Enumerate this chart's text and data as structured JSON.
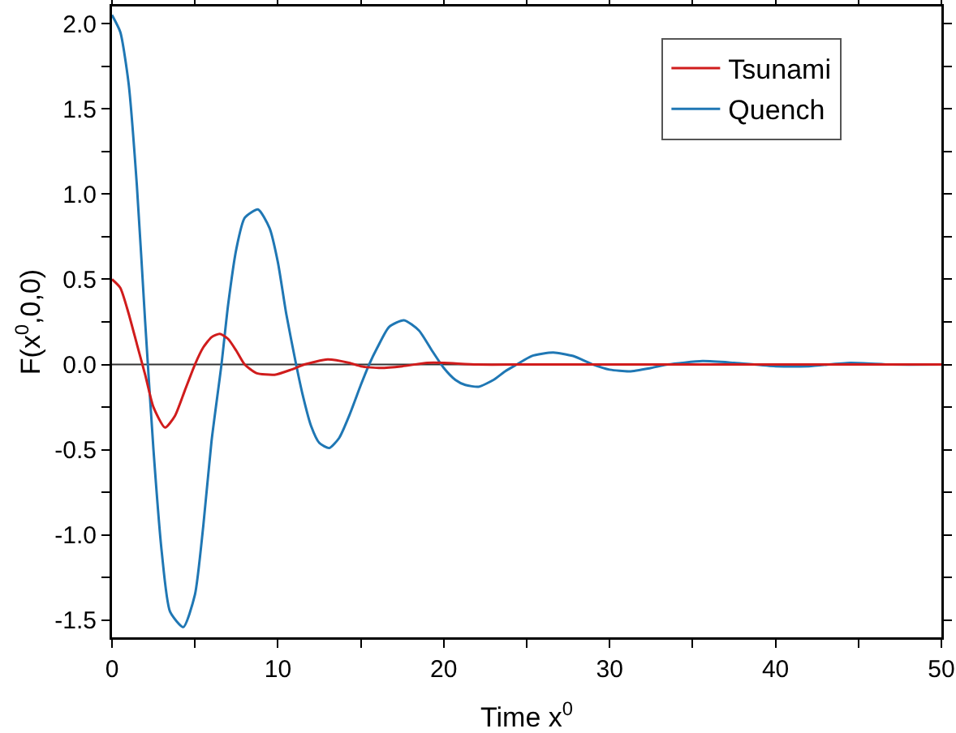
{
  "chart_data": {
    "type": "line",
    "xlabel": "Time x$^{0}$",
    "ylabel": "F(x$^{0}$,0,0)",
    "xlim": [
      0,
      50
    ],
    "xticks": [
      0,
      {
        "value": 5,
        "label": null
      },
      10,
      {
        "value": 15,
        "label": null
      },
      20,
      {
        "value": 25,
        "label": null
      },
      30,
      {
        "value": 35,
        "label": null
      },
      40,
      {
        "value": 45,
        "label": null
      },
      50
    ],
    "ylim": [
      -1.6,
      2.1
    ],
    "yticks": [
      {
        "value": -1.5,
        "label": "-1.5"
      },
      {
        "value": -1.25,
        "label": null
      },
      {
        "value": -1,
        "label": "-1.0"
      },
      {
        "value": -0.75,
        "label": null
      },
      {
        "value": -0.5,
        "label": "-0.5"
      },
      {
        "value": -0.25,
        "label": null
      },
      {
        "value": 0,
        "label": "0.0"
      },
      {
        "value": 0.25,
        "label": null
      },
      {
        "value": 0.5,
        "label": "0.5"
      },
      {
        "value": 0.75,
        "label": null
      },
      {
        "value": 1,
        "label": "1.0"
      },
      {
        "value": 1.25,
        "label": null
      },
      {
        "value": 1.5,
        "label": "1.5"
      },
      {
        "value": 1.75,
        "label": null
      },
      {
        "value": 2,
        "label": "2.0"
      }
    ],
    "grid": false,
    "legend": "top right",
    "marker": "none",
    "line_style": "solid",
    "ref_lines": [
      {
        "axis": "y",
        "value": 0,
        "color": "#333333"
      }
    ],
    "series": [
      {
        "name": "Tsunami",
        "color": "#d01c1c",
        "x": [
          0,
          0.5,
          1,
          1.5,
          2,
          2.5,
          3.2,
          3.8,
          4.4,
          5,
          5.5,
          6,
          6.5,
          7,
          7.5,
          8,
          8.7,
          9.8,
          10.8,
          11.6,
          13,
          14.3,
          15,
          16.2,
          17.5,
          19,
          20,
          22,
          25,
          30,
          40,
          50
        ],
        "values": [
          0.5,
          0.45,
          0.3,
          0.12,
          -0.06,
          -0.25,
          -0.37,
          -0.3,
          -0.15,
          0,
          0.1,
          0.16,
          0.18,
          0.15,
          0.08,
          0,
          -0.05,
          -0.06,
          -0.03,
          0,
          0.03,
          0.01,
          -0.01,
          -0.02,
          -0.01,
          0.01,
          0.01,
          0,
          0,
          0,
          0,
          0
        ]
      },
      {
        "name": "Quench",
        "color": "#1f77b4",
        "x": [
          0,
          0.5,
          1,
          1.5,
          2,
          2.5,
          3,
          3.5,
          4.3,
          5,
          5.5,
          6,
          6.6,
          7,
          7.5,
          8,
          8.8,
          9.5,
          10,
          10.5,
          11.1,
          11.5,
          12,
          12.5,
          13.1,
          13.7,
          14.3,
          15,
          15.5,
          16,
          16.7,
          17.6,
          18.5,
          19.3,
          20,
          20.7,
          21.3,
          22.1,
          23,
          23.7,
          24.4,
          25.3,
          26.6,
          27.8,
          29,
          30,
          31.2,
          32.5,
          33.5,
          35.6,
          37.5,
          40,
          42,
          44.5,
          47,
          50
        ],
        "values": [
          2.05,
          1.95,
          1.65,
          1.05,
          0.25,
          -0.5,
          -1.1,
          -1.45,
          -1.54,
          -1.35,
          -0.95,
          -0.45,
          0,
          0.35,
          0.68,
          0.86,
          0.91,
          0.8,
          0.6,
          0.3,
          0,
          -0.18,
          -0.36,
          -0.46,
          -0.49,
          -0.43,
          -0.3,
          -0.12,
          0,
          0.1,
          0.22,
          0.26,
          0.2,
          0.08,
          -0.02,
          -0.09,
          -0.12,
          -0.13,
          -0.09,
          -0.04,
          0,
          0.05,
          0.07,
          0.05,
          0,
          -0.03,
          -0.04,
          -0.02,
          0,
          0.02,
          0.01,
          -0.01,
          -0.01,
          0.01,
          0,
          0
        ]
      }
    ]
  }
}
